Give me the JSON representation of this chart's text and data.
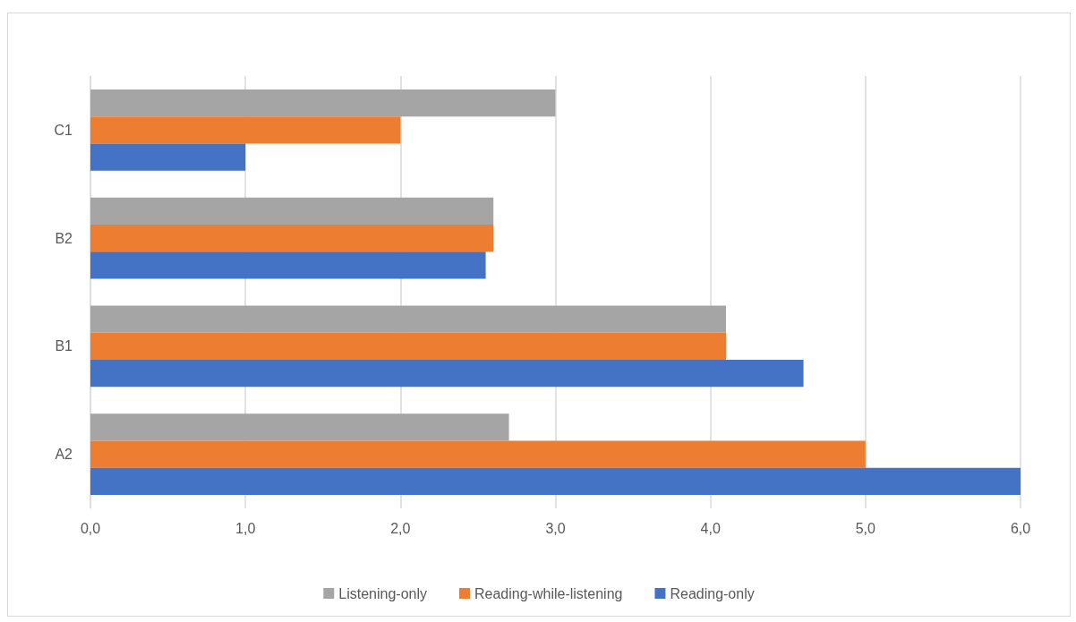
{
  "chart_data": {
    "type": "bar",
    "orientation": "horizontal",
    "categories": [
      "C1",
      "B2",
      "B1",
      "A2"
    ],
    "series": [
      {
        "name": "Listening-only",
        "color": "#a5a5a5",
        "values": [
          3.0,
          2.6,
          4.1,
          2.7
        ]
      },
      {
        "name": "Reading-while-listening",
        "color": "#ed7d31",
        "values": [
          2.0,
          2.6,
          4.1,
          5.0
        ]
      },
      {
        "name": "Reading-only",
        "color": "#4472c4",
        "values": [
          1.0,
          2.55,
          4.6,
          6.0
        ]
      }
    ],
    "xlim": [
      0,
      6
    ],
    "xticks": [
      {
        "value": 0,
        "label": "0,0"
      },
      {
        "value": 1,
        "label": "1,0"
      },
      {
        "value": 2,
        "label": "2,0"
      },
      {
        "value": 3,
        "label": "3,0"
      },
      {
        "value": 4,
        "label": "4,0"
      },
      {
        "value": 5,
        "label": "5,0"
      },
      {
        "value": 6,
        "label": "6,0"
      }
    ],
    "grid": "x",
    "legend": "bottom"
  }
}
